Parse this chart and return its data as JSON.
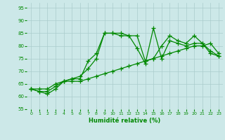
{
  "xlabel": "Humidité relative (%)",
  "ylabel": "",
  "xlim": [
    -0.5,
    23.5
  ],
  "ylim": [
    55,
    97
  ],
  "yticks": [
    55,
    60,
    65,
    70,
    75,
    80,
    85,
    90,
    95
  ],
  "xticks": [
    0,
    1,
    2,
    3,
    4,
    5,
    6,
    7,
    8,
    9,
    10,
    11,
    12,
    13,
    14,
    15,
    16,
    17,
    18,
    19,
    20,
    21,
    22,
    23
  ],
  "bg_color": "#cce8e8",
  "grid_color": "#aacccc",
  "line_color": "#008800",
  "marker": "+",
  "markersize": 4,
  "linewidth": 0.9,
  "series": [
    [
      63,
      62,
      61,
      63,
      66,
      66,
      66,
      67,
      68,
      69,
      70,
      71,
      72,
      73,
      74,
      75,
      76,
      77,
      78,
      79,
      80,
      80,
      81,
      77
    ],
    [
      63,
      62,
      62,
      64,
      66,
      67,
      67,
      74,
      77,
      85,
      85,
      85,
      84,
      79,
      73,
      87,
      75,
      82,
      81,
      80,
      81,
      81,
      77,
      76
    ],
    [
      63,
      63,
      63,
      65,
      66,
      67,
      68,
      71,
      75,
      85,
      85,
      84,
      84,
      84,
      74,
      75,
      80,
      84,
      82,
      81,
      84,
      81,
      78,
      76
    ]
  ]
}
